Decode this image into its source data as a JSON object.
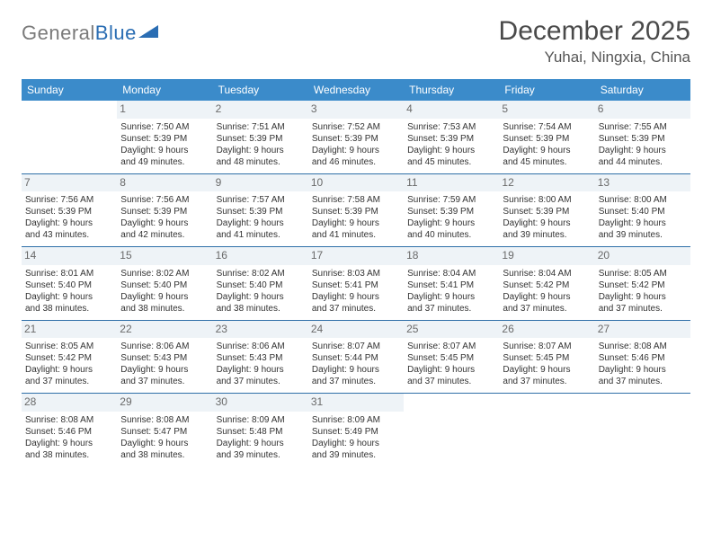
{
  "logo": {
    "part1": "General",
    "part2": "Blue"
  },
  "title": "December 2025",
  "location": "Yuhai, Ningxia, China",
  "colors": {
    "header_bg": "#3b8bca",
    "header_text": "#ffffff",
    "daynum_bg": "#eef3f7",
    "week_border": "#2f6fa8",
    "logo_gray": "#7a7a7a",
    "logo_blue": "#2a6db3"
  },
  "weekdays": [
    "Sunday",
    "Monday",
    "Tuesday",
    "Wednesday",
    "Thursday",
    "Friday",
    "Saturday"
  ],
  "weeks": [
    [
      {
        "empty": true
      },
      {
        "n": "1",
        "sunrise": "Sunrise: 7:50 AM",
        "sunset": "Sunset: 5:39 PM",
        "day1": "Daylight: 9 hours",
        "day2": "and 49 minutes."
      },
      {
        "n": "2",
        "sunrise": "Sunrise: 7:51 AM",
        "sunset": "Sunset: 5:39 PM",
        "day1": "Daylight: 9 hours",
        "day2": "and 48 minutes."
      },
      {
        "n": "3",
        "sunrise": "Sunrise: 7:52 AM",
        "sunset": "Sunset: 5:39 PM",
        "day1": "Daylight: 9 hours",
        "day2": "and 46 minutes."
      },
      {
        "n": "4",
        "sunrise": "Sunrise: 7:53 AM",
        "sunset": "Sunset: 5:39 PM",
        "day1": "Daylight: 9 hours",
        "day2": "and 45 minutes."
      },
      {
        "n": "5",
        "sunrise": "Sunrise: 7:54 AM",
        "sunset": "Sunset: 5:39 PM",
        "day1": "Daylight: 9 hours",
        "day2": "and 45 minutes."
      },
      {
        "n": "6",
        "sunrise": "Sunrise: 7:55 AM",
        "sunset": "Sunset: 5:39 PM",
        "day1": "Daylight: 9 hours",
        "day2": "and 44 minutes."
      }
    ],
    [
      {
        "n": "7",
        "sunrise": "Sunrise: 7:56 AM",
        "sunset": "Sunset: 5:39 PM",
        "day1": "Daylight: 9 hours",
        "day2": "and 43 minutes."
      },
      {
        "n": "8",
        "sunrise": "Sunrise: 7:56 AM",
        "sunset": "Sunset: 5:39 PM",
        "day1": "Daylight: 9 hours",
        "day2": "and 42 minutes."
      },
      {
        "n": "9",
        "sunrise": "Sunrise: 7:57 AM",
        "sunset": "Sunset: 5:39 PM",
        "day1": "Daylight: 9 hours",
        "day2": "and 41 minutes."
      },
      {
        "n": "10",
        "sunrise": "Sunrise: 7:58 AM",
        "sunset": "Sunset: 5:39 PM",
        "day1": "Daylight: 9 hours",
        "day2": "and 41 minutes."
      },
      {
        "n": "11",
        "sunrise": "Sunrise: 7:59 AM",
        "sunset": "Sunset: 5:39 PM",
        "day1": "Daylight: 9 hours",
        "day2": "and 40 minutes."
      },
      {
        "n": "12",
        "sunrise": "Sunrise: 8:00 AM",
        "sunset": "Sunset: 5:39 PM",
        "day1": "Daylight: 9 hours",
        "day2": "and 39 minutes."
      },
      {
        "n": "13",
        "sunrise": "Sunrise: 8:00 AM",
        "sunset": "Sunset: 5:40 PM",
        "day1": "Daylight: 9 hours",
        "day2": "and 39 minutes."
      }
    ],
    [
      {
        "n": "14",
        "sunrise": "Sunrise: 8:01 AM",
        "sunset": "Sunset: 5:40 PM",
        "day1": "Daylight: 9 hours",
        "day2": "and 38 minutes."
      },
      {
        "n": "15",
        "sunrise": "Sunrise: 8:02 AM",
        "sunset": "Sunset: 5:40 PM",
        "day1": "Daylight: 9 hours",
        "day2": "and 38 minutes."
      },
      {
        "n": "16",
        "sunrise": "Sunrise: 8:02 AM",
        "sunset": "Sunset: 5:40 PM",
        "day1": "Daylight: 9 hours",
        "day2": "and 38 minutes."
      },
      {
        "n": "17",
        "sunrise": "Sunrise: 8:03 AM",
        "sunset": "Sunset: 5:41 PM",
        "day1": "Daylight: 9 hours",
        "day2": "and 37 minutes."
      },
      {
        "n": "18",
        "sunrise": "Sunrise: 8:04 AM",
        "sunset": "Sunset: 5:41 PM",
        "day1": "Daylight: 9 hours",
        "day2": "and 37 minutes."
      },
      {
        "n": "19",
        "sunrise": "Sunrise: 8:04 AM",
        "sunset": "Sunset: 5:42 PM",
        "day1": "Daylight: 9 hours",
        "day2": "and 37 minutes."
      },
      {
        "n": "20",
        "sunrise": "Sunrise: 8:05 AM",
        "sunset": "Sunset: 5:42 PM",
        "day1": "Daylight: 9 hours",
        "day2": "and 37 minutes."
      }
    ],
    [
      {
        "n": "21",
        "sunrise": "Sunrise: 8:05 AM",
        "sunset": "Sunset: 5:42 PM",
        "day1": "Daylight: 9 hours",
        "day2": "and 37 minutes."
      },
      {
        "n": "22",
        "sunrise": "Sunrise: 8:06 AM",
        "sunset": "Sunset: 5:43 PM",
        "day1": "Daylight: 9 hours",
        "day2": "and 37 minutes."
      },
      {
        "n": "23",
        "sunrise": "Sunrise: 8:06 AM",
        "sunset": "Sunset: 5:43 PM",
        "day1": "Daylight: 9 hours",
        "day2": "and 37 minutes."
      },
      {
        "n": "24",
        "sunrise": "Sunrise: 8:07 AM",
        "sunset": "Sunset: 5:44 PM",
        "day1": "Daylight: 9 hours",
        "day2": "and 37 minutes."
      },
      {
        "n": "25",
        "sunrise": "Sunrise: 8:07 AM",
        "sunset": "Sunset: 5:45 PM",
        "day1": "Daylight: 9 hours",
        "day2": "and 37 minutes."
      },
      {
        "n": "26",
        "sunrise": "Sunrise: 8:07 AM",
        "sunset": "Sunset: 5:45 PM",
        "day1": "Daylight: 9 hours",
        "day2": "and 37 minutes."
      },
      {
        "n": "27",
        "sunrise": "Sunrise: 8:08 AM",
        "sunset": "Sunset: 5:46 PM",
        "day1": "Daylight: 9 hours",
        "day2": "and 37 minutes."
      }
    ],
    [
      {
        "n": "28",
        "sunrise": "Sunrise: 8:08 AM",
        "sunset": "Sunset: 5:46 PM",
        "day1": "Daylight: 9 hours",
        "day2": "and 38 minutes."
      },
      {
        "n": "29",
        "sunrise": "Sunrise: 8:08 AM",
        "sunset": "Sunset: 5:47 PM",
        "day1": "Daylight: 9 hours",
        "day2": "and 38 minutes."
      },
      {
        "n": "30",
        "sunrise": "Sunrise: 8:09 AM",
        "sunset": "Sunset: 5:48 PM",
        "day1": "Daylight: 9 hours",
        "day2": "and 39 minutes."
      },
      {
        "n": "31",
        "sunrise": "Sunrise: 8:09 AM",
        "sunset": "Sunset: 5:49 PM",
        "day1": "Daylight: 9 hours",
        "day2": "and 39 minutes."
      },
      {
        "empty": true
      },
      {
        "empty": true
      },
      {
        "empty": true
      }
    ]
  ]
}
